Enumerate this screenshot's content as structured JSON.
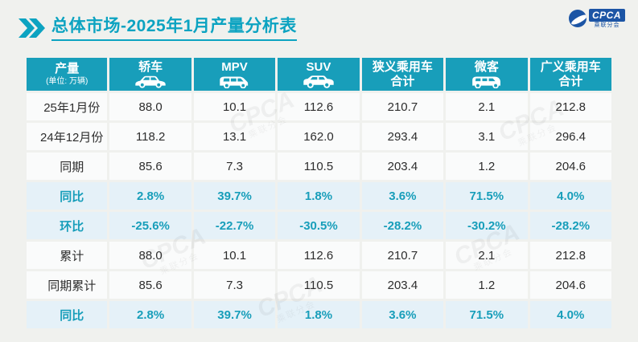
{
  "title": {
    "text": "总体市场-2025年1月产量分析表"
  },
  "logo": {
    "text": "CPCA",
    "subtext": "乘联分会"
  },
  "watermark": {
    "big": "CPCA",
    "small": "乘联分会"
  },
  "colors": {
    "header_teal": "#189eba",
    "title_teal": "#0ca3c1",
    "percent_row_bg": "#e5f1f8",
    "percent_text": "#189eba",
    "normal_row_bg": "#fafbfb",
    "page_bg": "#f0f1ee",
    "logo_blue": "#1c55a5"
  },
  "table": {
    "header": {
      "label": "产量",
      "unit": "(单位: 万辆)",
      "columns": [
        {
          "label": "轿车",
          "icon": "sedan-icon"
        },
        {
          "label": "MPV",
          "icon": "mpv-icon"
        },
        {
          "label": "SUV",
          "icon": "suv-icon"
        },
        {
          "label": "狭义乘用车",
          "label2": "合计"
        },
        {
          "label": "微客",
          "icon": "microvan-icon"
        },
        {
          "label": "广义乘用车",
          "label2": "合计"
        }
      ]
    },
    "rows": [
      {
        "label": "25年1月份",
        "type": "normal",
        "values": [
          "88.0",
          "10.1",
          "112.6",
          "210.7",
          "2.1",
          "212.8"
        ]
      },
      {
        "label": "24年12月份",
        "type": "normal",
        "values": [
          "118.2",
          "13.1",
          "162.0",
          "293.4",
          "3.1",
          "296.4"
        ]
      },
      {
        "label": "同期",
        "type": "normal",
        "values": [
          "85.6",
          "7.3",
          "110.5",
          "203.4",
          "1.2",
          "204.6"
        ]
      },
      {
        "label": "同比",
        "type": "percent",
        "values": [
          "2.8%",
          "39.7%",
          "1.8%",
          "3.6%",
          "71.5%",
          "4.0%"
        ]
      },
      {
        "label": "环比",
        "type": "percent",
        "values": [
          "-25.6%",
          "-22.7%",
          "-30.5%",
          "-28.2%",
          "-30.2%",
          "-28.2%"
        ]
      },
      {
        "label": "累计",
        "type": "normal",
        "values": [
          "88.0",
          "10.1",
          "112.6",
          "210.7",
          "2.1",
          "212.8"
        ]
      },
      {
        "label": "同期累计",
        "type": "normal",
        "values": [
          "85.6",
          "7.3",
          "110.5",
          "203.4",
          "1.2",
          "204.6"
        ]
      },
      {
        "label": "同比",
        "type": "percent",
        "values": [
          "2.8%",
          "39.7%",
          "1.8%",
          "3.6%",
          "71.5%",
          "4.0%"
        ]
      }
    ]
  }
}
